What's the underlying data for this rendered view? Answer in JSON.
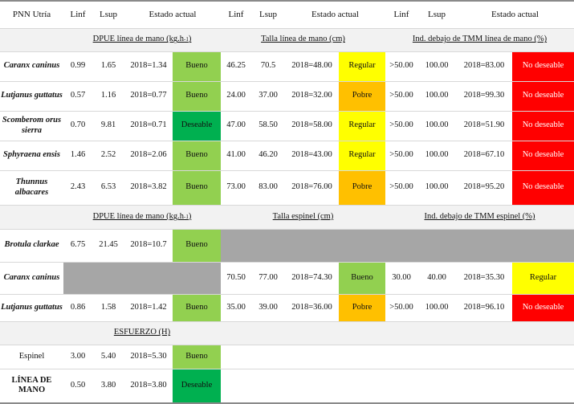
{
  "header": {
    "site": "PNN Utría",
    "linf": "Linf",
    "lsup": "Lsup",
    "estado": "Estado actual"
  },
  "sections": {
    "s1": {
      "dpue": "DPUE línea de mano (kg.h-1)",
      "talla": "Talla línea de mano (cm)",
      "tmm": "Ind. debajo de TMM línea de mano (%)"
    },
    "s2": {
      "dpue": "DPUE línea de mano (kg.h-1)",
      "talla": "Talla espinel (cm)",
      "tmm": "Ind. debajo de TMM espinel (%)"
    },
    "s3": {
      "esfuerzo": "ESFUERZO (H)"
    }
  },
  "rows_hand": [
    {
      "species": "Caranx caninus",
      "dpue": [
        "0.99",
        "1.65",
        "2018=1.34",
        "Bueno"
      ],
      "talla": [
        "46.25",
        "70.5",
        "2018=48.00",
        "Regular"
      ],
      "tmm": [
        ">50.00",
        "100.00",
        "2018=83.00",
        "No deseable"
      ]
    },
    {
      "species": "Lutjanus guttatus",
      "dpue": [
        "0.57",
        "1.16",
        "2018=0.77",
        "Bueno"
      ],
      "talla": [
        "24.00",
        "37.00",
        "2018=32.00",
        "Pobre"
      ],
      "tmm": [
        ">50.00",
        "100.00",
        "2018=99.30",
        "No deseable"
      ]
    },
    {
      "species": "Scomberom orus sierra",
      "dpue": [
        "0.70",
        "9.81",
        "2018=0.71",
        "Deseable"
      ],
      "talla": [
        "47.00",
        "58.50",
        "2018=58.00",
        "Regular"
      ],
      "tmm": [
        ">50.00",
        "100.00",
        "2018=51.90",
        "No deseable"
      ]
    },
    {
      "species": "Sphyraena ensis",
      "dpue": [
        "1.46",
        "2.52",
        "2018=2.06",
        "Bueno"
      ],
      "talla": [
        "41.00",
        "46.20",
        "2018=43.00",
        "Regular"
      ],
      "tmm": [
        ">50.00",
        "100.00",
        "2018=67.10",
        "No deseable"
      ]
    },
    {
      "species": "Thunnus albacares",
      "dpue": [
        "2.43",
        "6.53",
        "2018=3.82",
        "Bueno"
      ],
      "talla": [
        "73.00",
        "83.00",
        "2018=76.00",
        "Pobre"
      ],
      "tmm": [
        ">50.00",
        "100.00",
        "2018=95.20",
        "No deseable"
      ]
    }
  ],
  "rows_espinel": [
    {
      "species": "Brotula clarkae",
      "dpue": [
        "6.75",
        "21.45",
        "2018=10.7",
        "Bueno"
      ]
    },
    {
      "species": "Caranx caninus",
      "talla": [
        "70.50",
        "77.00",
        "2018=74.30",
        "Bueno"
      ],
      "tmm": [
        "30.00",
        "40.00",
        "2018=35.30",
        "Regular"
      ]
    },
    {
      "species": "Lutjanus guttatus",
      "dpue": [
        "0.86",
        "1.58",
        "2018=1.42",
        "Bueno"
      ],
      "talla": [
        "35.00",
        "39.00",
        "2018=36.00",
        "Pobre"
      ],
      "tmm": [
        ">50.00",
        "100.00",
        "2018=96.10",
        "No deseable"
      ]
    }
  ],
  "rows_effort": [
    {
      "label": "Espinel",
      "vals": [
        "3.00",
        "5.40",
        "2018=5.30",
        "Bueno"
      ]
    },
    {
      "label": "LÍNEA DE MANO",
      "vals": [
        "0.50",
        "3.80",
        "2018=3.80",
        "Deseable"
      ]
    }
  ],
  "status_colors": {
    "Bueno": "#92d050",
    "Deseable": "#00b050",
    "Regular": "#ffff00",
    "Pobre": "#ffc000",
    "No deseable": "#ff0000"
  }
}
